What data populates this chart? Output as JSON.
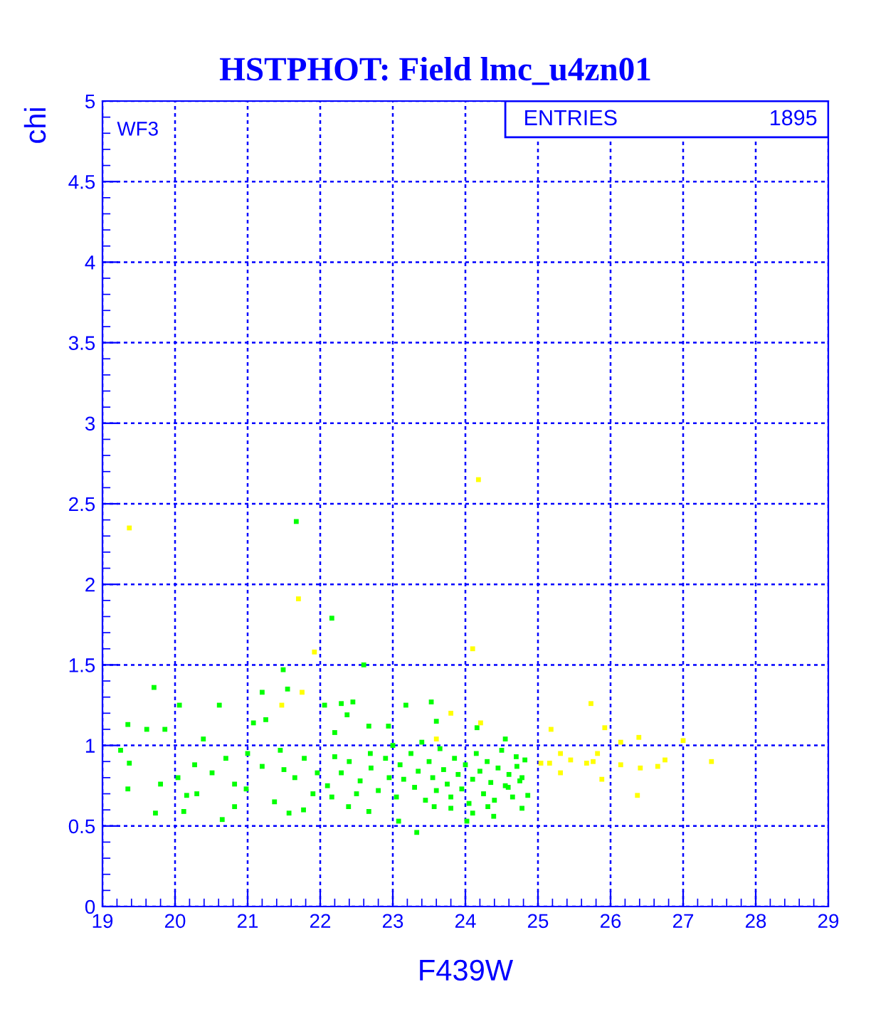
{
  "chart_data": {
    "type": "scatter",
    "title": "HSTPHOT: Field lmc_u4zn01",
    "xlabel": "F439W",
    "ylabel": "chi",
    "annotations": [
      "WF3",
      "ENTRIES",
      "1895"
    ],
    "xlim": [
      19,
      29
    ],
    "xticks": [
      19,
      20,
      21,
      22,
      23,
      24,
      25,
      26,
      27,
      28,
      29
    ],
    "ylim": [
      0,
      5
    ],
    "yticks": [
      0,
      0.5,
      1,
      1.5,
      2,
      2.5,
      3,
      3.5,
      4,
      4.5,
      5
    ],
    "grid": true,
    "marker": "square",
    "series": [
      {
        "color": "#00ff00",
        "x": [
          21.67,
          22.16,
          22.6,
          21.49,
          19.71,
          21.2,
          21.55,
          19.35,
          19.25,
          19.37,
          19.35,
          19.73,
          19.61,
          19.86,
          20.06,
          19.8,
          20.04,
          20.16,
          20.12,
          20.27,
          20.39,
          20.61,
          20.65,
          20.51,
          20.82,
          20.82,
          21.08,
          21.25,
          21.2,
          20.98,
          21.37,
          21.57,
          21.45,
          21.65,
          21.78,
          21.77,
          22.06,
          22.29,
          22.45,
          22.37,
          22.67,
          22.2,
          21.96,
          22.16,
          22.39,
          22.29,
          22.67,
          22.69,
          22.94,
          23.18,
          23.08,
          23.33,
          23.53,
          23.6,
          24.16,
          24.55,
          24.82,
          24.86,
          24.78,
          24.39,
          24.1,
          24.02,
          23.8,
          23.57,
          24.71,
          24.59,
          24.31,
          24.78,
          22.55,
          22.7,
          22.8,
          22.9,
          22.95,
          23.05,
          23.1,
          23.15,
          23.25,
          23.3,
          23.35,
          23.45,
          23.5,
          23.55,
          23.6,
          23.65,
          23.7,
          23.75,
          23.8,
          23.85,
          23.9,
          23.95,
          24.0,
          24.05,
          24.1,
          24.15,
          24.2,
          24.25,
          24.3,
          24.35,
          24.4,
          24.45,
          24.5,
          24.55,
          24.6,
          24.65,
          24.7,
          24.75,
          23.0,
          23.4,
          22.4,
          22.5,
          22.1,
          22.2,
          21.9,
          21.5,
          21.0,
          20.7,
          20.3
        ],
        "values": [
          2.39,
          1.79,
          1.5,
          1.47,
          1.36,
          1.33,
          1.35,
          1.13,
          0.97,
          0.89,
          0.73,
          0.58,
          1.1,
          1.1,
          1.25,
          0.76,
          0.8,
          0.69,
          0.59,
          0.88,
          1.04,
          1.25,
          0.54,
          0.83,
          0.76,
          0.62,
          1.14,
          1.16,
          0.87,
          0.73,
          0.65,
          0.58,
          0.97,
          0.8,
          0.92,
          0.6,
          1.25,
          1.26,
          1.27,
          1.19,
          1.12,
          1.08,
          0.83,
          0.68,
          0.62,
          0.83,
          0.59,
          0.95,
          1.12,
          1.25,
          0.53,
          0.46,
          1.27,
          1.15,
          1.11,
          1.04,
          0.91,
          0.69,
          0.61,
          0.56,
          0.58,
          0.53,
          0.61,
          0.62,
          0.87,
          0.74,
          0.62,
          0.8,
          0.78,
          0.86,
          0.72,
          0.92,
          0.8,
          0.68,
          0.88,
          0.79,
          0.95,
          0.74,
          0.84,
          0.66,
          0.9,
          0.8,
          0.72,
          0.98,
          0.85,
          0.76,
          0.68,
          0.92,
          0.82,
          0.73,
          0.88,
          0.64,
          0.79,
          0.95,
          0.84,
          0.7,
          0.9,
          0.77,
          0.66,
          0.86,
          0.97,
          0.75,
          0.82,
          0.68,
          0.93,
          0.78,
          1.0,
          1.02,
          0.9,
          0.7,
          0.75,
          0.93,
          0.7,
          0.85,
          0.95,
          0.92,
          0.7
        ]
      },
      {
        "color": "#ffff00",
        "x": [
          19.37,
          21.7,
          21.92,
          21.75,
          21.47,
          24.18,
          24.1,
          25.73,
          25.92,
          25.18,
          26.14,
          26.39,
          27.0,
          27.39,
          26.65,
          26.75,
          26.37,
          26.14,
          25.82,
          25.76,
          25.67,
          25.45,
          25.31,
          25.31,
          25.16,
          25.04,
          25.88,
          26.41,
          23.8,
          24.21,
          23.6
        ],
        "values": [
          2.35,
          1.91,
          1.58,
          1.33,
          1.25,
          2.65,
          1.6,
          1.26,
          1.11,
          1.1,
          1.02,
          1.05,
          1.03,
          0.9,
          0.87,
          0.91,
          0.69,
          0.88,
          0.95,
          0.9,
          0.89,
          0.91,
          0.95,
          0.83,
          0.89,
          0.89,
          0.79,
          0.86,
          1.2,
          1.14,
          1.04
        ]
      }
    ]
  }
}
